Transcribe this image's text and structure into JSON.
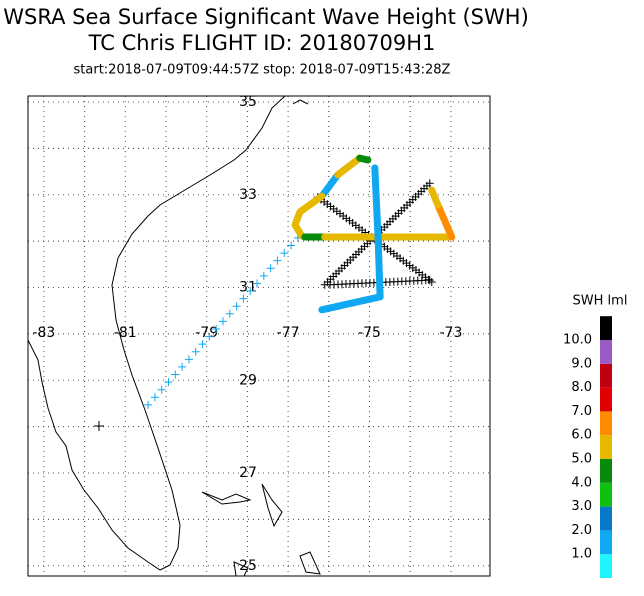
{
  "chart_data": {
    "type": "map",
    "title": "WSRA Sea Surface Significant Wave Height (SWH)",
    "subtitle": "TC Chris FLIGHT ID: 20180709H1",
    "time_range": "start:2018-07-09T09:44:57Z  stop: 2018-07-09T15:43:28Z",
    "xlim": [
      -83.39,
      -72.04
    ],
    "ylim": [
      24.78,
      35.13
    ],
    "xticks": [
      -83,
      -81,
      -79,
      -77,
      -75,
      -73
    ],
    "yticks": [
      25,
      27,
      29,
      31,
      33,
      35
    ],
    "grid": true,
    "colorbar": {
      "title": "SWH lml",
      "levels": [
        {
          "value": 1,
          "label": "1.0"
        },
        {
          "value": 2,
          "label": "2.0"
        },
        {
          "value": 3,
          "label": "3.0"
        },
        {
          "value": 4,
          "label": "4.0"
        },
        {
          "value": 5,
          "label": "5.0"
        },
        {
          "value": 6,
          "label": "6.0"
        },
        {
          "value": 7,
          "label": "7.0"
        },
        {
          "value": 8,
          "label": "8.0"
        },
        {
          "value": 9,
          "label": "9.0"
        },
        {
          "value": 10,
          "label": "10.0"
        }
      ],
      "colors": [
        "#1ff4ff",
        "#10a8f0",
        "#0878c8",
        "#10c010",
        "#0a8a0a",
        "#e6b800",
        "#ff8c00",
        "#e00000",
        "#c00010",
        "#9a5ac8",
        "#000000"
      ]
    },
    "swh_tracks": [
      {
        "swh": 1.8,
        "lon": [
          -76.17,
          -75.78
        ],
        "lat": [
          32.97,
          33.43
        ]
      },
      {
        "swh": 5.3,
        "lon": [
          -75.78,
          -75.24
        ],
        "lat": [
          33.43,
          33.79
        ]
      },
      {
        "swh": 4.3,
        "lon": [
          -75.24,
          -75.04
        ],
        "lat": [
          33.79,
          33.75
        ]
      },
      {
        "swh": 5.2,
        "lon": [
          -76.17,
          -76.71,
          -76.83,
          -76.66
        ],
        "lat": [
          32.97,
          32.63,
          32.35,
          32.11
        ]
      },
      {
        "swh": 4.2,
        "lon": [
          -76.59,
          -76.1
        ],
        "lat": [
          32.09,
          32.09
        ]
      },
      {
        "swh": 5.4,
        "lon": [
          -76.1,
          -72.98
        ],
        "lat": [
          32.09,
          32.09
        ]
      },
      {
        "swh": 6.3,
        "lon": [
          -72.98,
          -73.32
        ],
        "lat": [
          32.09,
          32.78
        ]
      },
      {
        "swh": 5.2,
        "lon": [
          -73.32,
          -73.47
        ],
        "lat": [
          32.78,
          33.1
        ]
      },
      {
        "swh": 1.5,
        "lon": [
          -74.87,
          -74.79
        ],
        "lat": [
          33.58,
          32.09
        ]
      },
      {
        "swh": 1.6,
        "lon": [
          -74.79,
          -74.74
        ],
        "lat": [
          32.09,
          30.8
        ]
      },
      {
        "swh": 1.7,
        "lon": [
          -74.74,
          -76.17
        ],
        "lat": [
          30.8,
          30.52
        ]
      }
    ],
    "cross_tracks": [
      {
        "color": "#000000",
        "lon": [
          -76.27,
          -73.47
        ],
        "lat": [
          32.95,
          31.12
        ]
      },
      {
        "color": "#000000",
        "lon": [
          -73.52,
          -76.1
        ],
        "lat": [
          33.25,
          31.06
        ]
      },
      {
        "color": "#000000",
        "lon": [
          -75.97,
          -73.52
        ],
        "lat": [
          31.06,
          31.16
        ]
      },
      {
        "color": "#10a8f0",
        "lon": [
          -80.44,
          -76.76
        ],
        "lat": [
          28.47,
          32.07
        ]
      }
    ]
  }
}
